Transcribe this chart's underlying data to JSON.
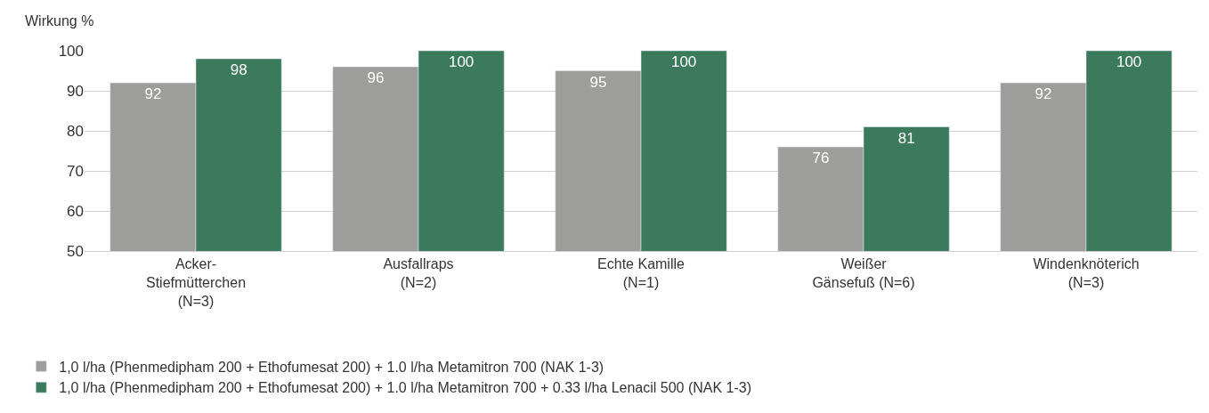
{
  "chart_data": {
    "type": "bar",
    "ylabel": "Wirkung %",
    "categories": [
      "Acker-\nStiefmütterchen\n(N=3)",
      "Ausfallraps\n(N=2)",
      "Echte Kamille\n(N=1)",
      "Weißer\nGänsefuß (N=6)",
      "Windenknöterich\n(N=3)"
    ],
    "series": [
      {
        "name": "1,0 l/ha (Phenmedipham 200 + Ethofumesat 200) + 1.0 l/ha Metamitron 700 (NAK 1-3)",
        "color": "#9d9d9c",
        "values": [
          92,
          96,
          95,
          76,
          92
        ]
      },
      {
        "name": "1,0 l/ha (Phenmedipham 200 + Ethofumesat 200) + 1.0 l/ha Metamitron 700 + 0.33 l/ha Lenacil 500 (NAK 1-3)",
        "color": "#3b7a5c",
        "values": [
          98,
          100,
          100,
          81,
          100
        ]
      }
    ],
    "ylim": [
      50,
      100
    ],
    "yticks": [
      50,
      60,
      70,
      80,
      90,
      100
    ],
    "grid": "y",
    "legend": "bottom",
    "data_labels": true
  }
}
